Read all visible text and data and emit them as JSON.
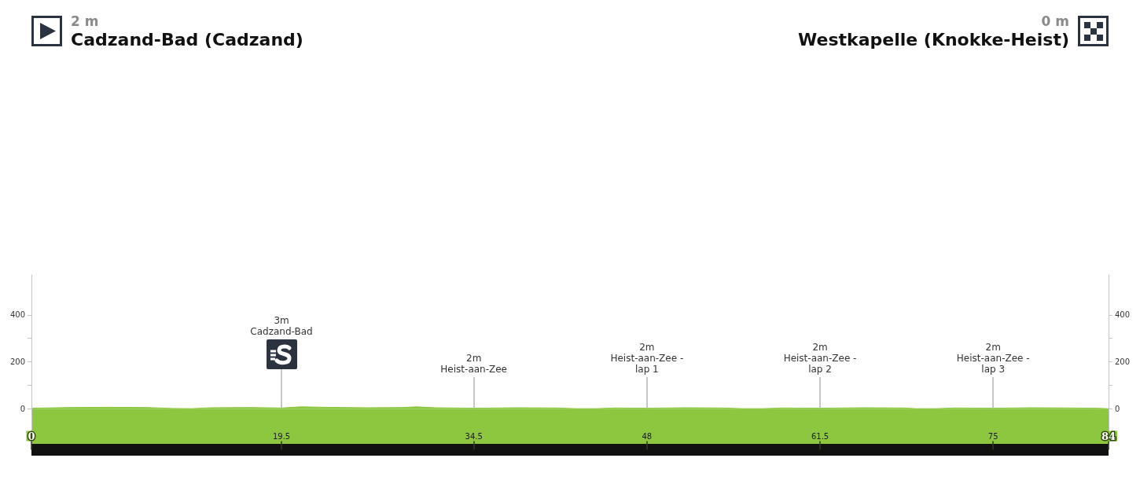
{
  "chart_data": {
    "type": "area",
    "x": [
      0,
      3,
      6,
      9,
      11,
      12.5,
      14,
      17,
      19.5,
      21,
      23,
      26,
      29,
      30,
      31.5,
      34.5,
      38,
      41,
      42.5,
      44,
      45.5,
      48,
      51,
      54,
      55.5,
      57,
      58.5,
      61.5,
      65,
      68,
      69,
      70.5,
      72,
      75,
      78,
      81,
      83,
      84
    ],
    "values": [
      2,
      5,
      6,
      5,
      1,
      0,
      4,
      5,
      3,
      8,
      6,
      4,
      5,
      8,
      4,
      2,
      4,
      3,
      0,
      0,
      3,
      2,
      4,
      3,
      0,
      0,
      3,
      2,
      4,
      3,
      0,
      0,
      3,
      2,
      4,
      3,
      2,
      0
    ],
    "color": "#8dc63f",
    "xlim": [
      0,
      84
    ],
    "xticks": [
      0,
      19.5,
      34.5,
      48,
      61.5,
      75,
      84
    ],
    "ylim": [
      -150,
      570
    ],
    "yticks": [
      {
        "value": -100,
        "label": null
      },
      0,
      {
        "value": 100,
        "label": null
      },
      200,
      {
        "value": 300,
        "label": null
      },
      400
    ],
    "y2lim": [
      -150,
      570
    ],
    "y2ticks": [
      {
        "value": -100,
        "label": null
      },
      0,
      {
        "value": 100,
        "label": null
      },
      200,
      {
        "value": 300,
        "label": null
      },
      400
    ],
    "bands": [
      {
        "axis": "y",
        "from": -150,
        "to": 0,
        "color": "#8dc63f"
      }
    ],
    "annotations": [
      "2 m",
      "Cadzand-Bad (Cadzand)",
      "0 m",
      "Westkapelle (Knokke-Heist)",
      {
        "text": "3m\nCadzand-Bad",
        "x": 19.5,
        "y": 3
      },
      {
        "text": "2m\nHeist-aan-Zee",
        "x": 34.5,
        "y": 2
      },
      {
        "text": "2m\nHeist-aan-Zee -\nlap 1",
        "x": 48,
        "y": 2
      },
      {
        "text": "2m\nHeist-aan-Zee -\nlap 2",
        "x": 61.5,
        "y": 2
      },
      {
        "text": "2m\nHeist-aan-Zee -\nlap 3",
        "x": 75,
        "y": 2
      }
    ]
  }
}
